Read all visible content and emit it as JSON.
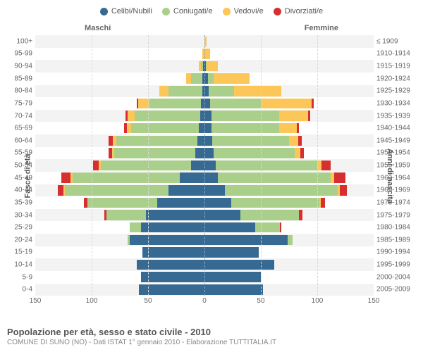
{
  "title": "Popolazione per età, sesso e stato civile - 2010",
  "subtitle": "COMUNE DI SUNO (NO) - Dati ISTAT 1° gennaio 2010 - Elaborazione TUTTITALIA.IT",
  "legend": [
    {
      "label": "Celibi/Nubili",
      "color": "#376a93"
    },
    {
      "label": "Coniugati/e",
      "color": "#a9cf8a"
    },
    {
      "label": "Vedovi/e",
      "color": "#fcc658"
    },
    {
      "label": "Divorziati/e",
      "color": "#d72f30"
    }
  ],
  "gender_labels": {
    "male": "Maschi",
    "female": "Femmine"
  },
  "y_left_title": "Fasce di età",
  "y_right_title": "Anni di nascita",
  "x": {
    "max": 150,
    "ticks": [
      150,
      100,
      50,
      0,
      50,
      100,
      150
    ]
  },
  "colors": {
    "celibe": "#376a93",
    "coniugato": "#a9cf8a",
    "vedovo": "#fcc658",
    "divorziato": "#d72f30",
    "grid": "#d8d8d8",
    "band": "#f3f3f3",
    "center": "#8aa8c0"
  },
  "rows": [
    {
      "age": "100+",
      "birth": "≤ 1909",
      "m": {
        "c": 0,
        "k": 0,
        "v": 0,
        "d": 0
      },
      "f": {
        "c": 0,
        "k": 0,
        "v": 2,
        "d": 0
      }
    },
    {
      "age": "95-99",
      "birth": "1910-1914",
      "m": {
        "c": 0,
        "k": 0,
        "v": 2,
        "d": 0
      },
      "f": {
        "c": 0,
        "k": 0,
        "v": 5,
        "d": 0
      }
    },
    {
      "age": "90-94",
      "birth": "1915-1919",
      "m": {
        "c": 1,
        "k": 2,
        "v": 2,
        "d": 0
      },
      "f": {
        "c": 1,
        "k": 1,
        "v": 10,
        "d": 0
      }
    },
    {
      "age": "85-89",
      "birth": "1920-1924",
      "m": {
        "c": 2,
        "k": 10,
        "v": 4,
        "d": 0
      },
      "f": {
        "c": 3,
        "k": 5,
        "v": 32,
        "d": 0
      }
    },
    {
      "age": "80-84",
      "birth": "1925-1929",
      "m": {
        "c": 2,
        "k": 30,
        "v": 8,
        "d": 0
      },
      "f": {
        "c": 4,
        "k": 22,
        "v": 42,
        "d": 0
      }
    },
    {
      "age": "75-79",
      "birth": "1930-1934",
      "m": {
        "c": 3,
        "k": 46,
        "v": 10,
        "d": 1
      },
      "f": {
        "c": 5,
        "k": 45,
        "v": 45,
        "d": 2
      }
    },
    {
      "age": "70-74",
      "birth": "1935-1939",
      "m": {
        "c": 4,
        "k": 58,
        "v": 6,
        "d": 2
      },
      "f": {
        "c": 6,
        "k": 60,
        "v": 26,
        "d": 2
      }
    },
    {
      "age": "65-69",
      "birth": "1940-1944",
      "m": {
        "c": 5,
        "k": 60,
        "v": 4,
        "d": 2
      },
      "f": {
        "c": 6,
        "k": 60,
        "v": 16,
        "d": 2
      }
    },
    {
      "age": "60-64",
      "birth": "1945-1949",
      "m": {
        "c": 6,
        "k": 72,
        "v": 3,
        "d": 4
      },
      "f": {
        "c": 7,
        "k": 68,
        "v": 8,
        "d": 3
      }
    },
    {
      "age": "55-59",
      "birth": "1950-1954",
      "m": {
        "c": 8,
        "k": 72,
        "v": 2,
        "d": 3
      },
      "f": {
        "c": 8,
        "k": 72,
        "v": 5,
        "d": 3
      }
    },
    {
      "age": "50-54",
      "birth": "1955-1959",
      "m": {
        "c": 12,
        "k": 80,
        "v": 2,
        "d": 5
      },
      "f": {
        "c": 10,
        "k": 90,
        "v": 4,
        "d": 8
      }
    },
    {
      "age": "45-49",
      "birth": "1960-1964",
      "m": {
        "c": 22,
        "k": 95,
        "v": 2,
        "d": 8
      },
      "f": {
        "c": 12,
        "k": 100,
        "v": 3,
        "d": 10
      }
    },
    {
      "age": "40-44",
      "birth": "1965-1969",
      "m": {
        "c": 32,
        "k": 92,
        "v": 1,
        "d": 5
      },
      "f": {
        "c": 18,
        "k": 100,
        "v": 2,
        "d": 6
      }
    },
    {
      "age": "35-39",
      "birth": "1970-1974",
      "m": {
        "c": 42,
        "k": 62,
        "v": 0,
        "d": 3
      },
      "f": {
        "c": 24,
        "k": 78,
        "v": 1,
        "d": 4
      }
    },
    {
      "age": "30-34",
      "birth": "1975-1979",
      "m": {
        "c": 52,
        "k": 35,
        "v": 0,
        "d": 2
      },
      "f": {
        "c": 32,
        "k": 52,
        "v": 0,
        "d": 3
      }
    },
    {
      "age": "25-29",
      "birth": "1980-1984",
      "m": {
        "c": 56,
        "k": 10,
        "v": 0,
        "d": 0
      },
      "f": {
        "c": 45,
        "k": 22,
        "v": 0,
        "d": 1
      }
    },
    {
      "age": "20-24",
      "birth": "1985-1989",
      "m": {
        "c": 66,
        "k": 2,
        "v": 0,
        "d": 0
      },
      "f": {
        "c": 74,
        "k": 4,
        "v": 0,
        "d": 0
      }
    },
    {
      "age": "15-19",
      "birth": "1990-1994",
      "m": {
        "c": 55,
        "k": 0,
        "v": 0,
        "d": 0
      },
      "f": {
        "c": 48,
        "k": 0,
        "v": 0,
        "d": 0
      }
    },
    {
      "age": "10-14",
      "birth": "1995-1999",
      "m": {
        "c": 60,
        "k": 0,
        "v": 0,
        "d": 0
      },
      "f": {
        "c": 62,
        "k": 0,
        "v": 0,
        "d": 0
      }
    },
    {
      "age": "5-9",
      "birth": "2000-2004",
      "m": {
        "c": 56,
        "k": 0,
        "v": 0,
        "d": 0
      },
      "f": {
        "c": 50,
        "k": 0,
        "v": 0,
        "d": 0
      }
    },
    {
      "age": "0-4",
      "birth": "2005-2009",
      "m": {
        "c": 58,
        "k": 0,
        "v": 0,
        "d": 0
      },
      "f": {
        "c": 52,
        "k": 0,
        "v": 0,
        "d": 0
      }
    }
  ]
}
